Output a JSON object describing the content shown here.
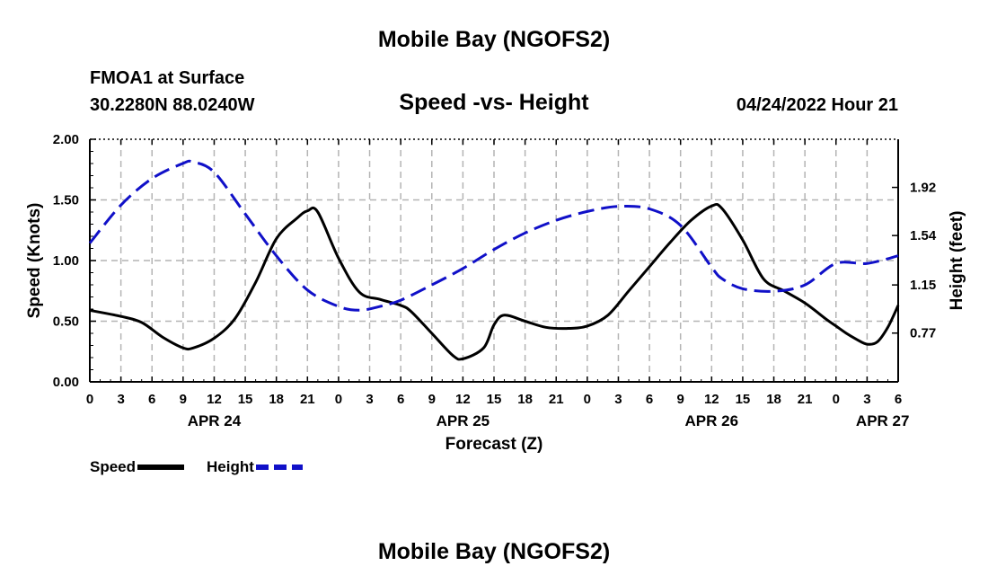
{
  "header": {
    "title": "Mobile Bay (NGOFS2)",
    "station": "FMOA1 at Surface",
    "coords": "30.2280N  88.0240W",
    "subtitle": "Speed -vs- Height",
    "datetime": "04/24/2022 Hour 21",
    "footer_title": "Mobile Bay (NGOFS2)"
  },
  "legend": {
    "speed_label": "Speed",
    "height_label": "Height"
  },
  "colors": {
    "speed": "#000000",
    "height": "#1010c8",
    "grid": "#b4b4b4"
  },
  "chart_data": {
    "type": "line",
    "title": "Speed -vs- Height",
    "xlabel": "Forecast (Z)",
    "ylabel": "Speed (Knots)",
    "y2label": "Height (feet)",
    "x_unit": "hours from APR 24 00Z",
    "xlim": [
      0,
      78
    ],
    "ylim": [
      0,
      2.0
    ],
    "y2lim": [
      0.385,
      2.3
    ],
    "x_ticks": [
      0,
      3,
      6,
      9,
      12,
      15,
      18,
      21,
      24,
      27,
      30,
      33,
      36,
      39,
      42,
      45,
      48,
      51,
      54,
      57,
      60,
      63,
      66,
      69,
      72,
      75,
      78
    ],
    "x_tick_labels": [
      "0",
      "3",
      "6",
      "9",
      "12",
      "15",
      "18",
      "21",
      "0",
      "3",
      "6",
      "9",
      "12",
      "15",
      "18",
      "21",
      "0",
      "3",
      "6",
      "9",
      "12",
      "15",
      "18",
      "21",
      "0",
      "3",
      "6"
    ],
    "date_labels": [
      {
        "x": 12,
        "label": "APR 24"
      },
      {
        "x": 36,
        "label": "APR 25"
      },
      {
        "x": 60,
        "label": "APR 26"
      },
      {
        "x": 76.5,
        "label": "APR 27"
      }
    ],
    "y_ticks": [
      0.0,
      0.5,
      1.0,
      1.5,
      2.0
    ],
    "y_tick_labels": [
      "0.00",
      "0.50",
      "1.00",
      "1.50",
      "2.00"
    ],
    "y2_ticks": [
      0.77,
      1.15,
      1.54,
      1.92
    ],
    "y2_tick_labels": [
      "0.77",
      "1.15",
      "1.54",
      "1.92"
    ],
    "series": [
      {
        "name": "Speed",
        "axis": "left",
        "style": "solid",
        "x": [
          0,
          3,
          5,
          7,
          9,
          10,
          12,
          14,
          16,
          18,
          20,
          21,
          22,
          24,
          26,
          28,
          30,
          31,
          33,
          35,
          36,
          38,
          39,
          40,
          42,
          44,
          46,
          48,
          50,
          52,
          54,
          56,
          58,
          60,
          61,
          63,
          65,
          67,
          69,
          71,
          72,
          73,
          74,
          75,
          76,
          77,
          78
        ],
        "y": [
          0.59,
          0.54,
          0.49,
          0.37,
          0.28,
          0.28,
          0.36,
          0.52,
          0.82,
          1.18,
          1.35,
          1.41,
          1.4,
          1.02,
          0.74,
          0.68,
          0.63,
          0.58,
          0.4,
          0.22,
          0.19,
          0.28,
          0.47,
          0.55,
          0.5,
          0.45,
          0.44,
          0.46,
          0.55,
          0.75,
          0.95,
          1.15,
          1.33,
          1.45,
          1.43,
          1.17,
          0.85,
          0.75,
          0.65,
          0.52,
          0.46,
          0.4,
          0.35,
          0.31,
          0.33,
          0.45,
          0.63
        ]
      },
      {
        "name": "Height",
        "axis": "right",
        "style": "dashed",
        "x": [
          0,
          3,
          6,
          9,
          10,
          12,
          15,
          18,
          21,
          24,
          26,
          28,
          30,
          33,
          36,
          39,
          42,
          45,
          48,
          51,
          54,
          57,
          60,
          61,
          63,
          66,
          69,
          72,
          75,
          78
        ],
        "y": [
          1.48,
          1.78,
          1.99,
          2.11,
          2.12,
          2.04,
          1.71,
          1.38,
          1.11,
          0.98,
          0.95,
          0.98,
          1.03,
          1.15,
          1.28,
          1.43,
          1.56,
          1.66,
          1.73,
          1.77,
          1.75,
          1.62,
          1.29,
          1.2,
          1.12,
          1.1,
          1.15,
          1.32,
          1.32,
          1.38
        ]
      }
    ]
  }
}
